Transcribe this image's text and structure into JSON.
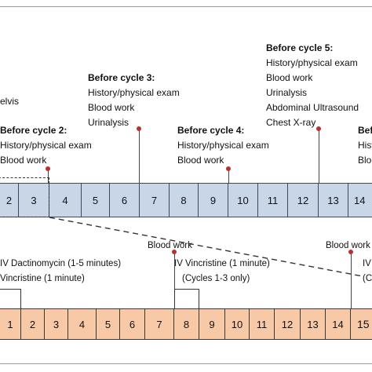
{
  "top_timeline": {
    "cells": [
      "2",
      "3",
      "4",
      "5",
      "6",
      "7",
      "8",
      "9",
      "10",
      "11",
      "12",
      "13",
      "14"
    ],
    "colors": {
      "fill": "#c9d6e8",
      "border": "#3a4a5c"
    }
  },
  "bottom_timeline": {
    "cells": [
      "1",
      "2",
      "3",
      "4",
      "5",
      "6",
      "7",
      "8",
      "9",
      "10",
      "11",
      "12",
      "13",
      "14",
      "15"
    ],
    "colors": {
      "fill": "#f7c9a6",
      "border": "#3a3a3a"
    }
  },
  "marker_color": "#b8312f",
  "annotations": {
    "pelvis": "elvis",
    "cycle2": {
      "heading": "Before cycle 2:",
      "items": [
        "History/physical exam",
        "Blood work"
      ]
    },
    "cycle3": {
      "heading": "Before cycle 3:",
      "items": [
        "History/physical exam",
        "Blood work",
        "Urinalysis"
      ]
    },
    "cycle4": {
      "heading": "Before cycle 4:",
      "items": [
        "History/physical exam",
        "Blood work"
      ]
    },
    "cycle5": {
      "heading": "Before cycle 5:",
      "items": [
        "History/physical exam",
        "Blood work",
        "Urinalysis",
        "Abdominal Ultrasound",
        "Chest X-ray"
      ]
    },
    "cycle6": {
      "heading": "Befo",
      "items": [
        "Hist",
        "Bloo"
      ]
    }
  },
  "bottom_annotations": {
    "dactinomycin": "IV Dactinomycin (1-5 minutes)",
    "vincristine_left": "Vincristine (1 minute)",
    "blood_work_mid": "Blood work",
    "vincristine_mid": "IV Vincristine (1 minute)",
    "cycles_note": "(Cycles 1-3 only)",
    "blood_work_right": "Blood work",
    "iv_right": "IV",
    "paren_right": "(C"
  }
}
